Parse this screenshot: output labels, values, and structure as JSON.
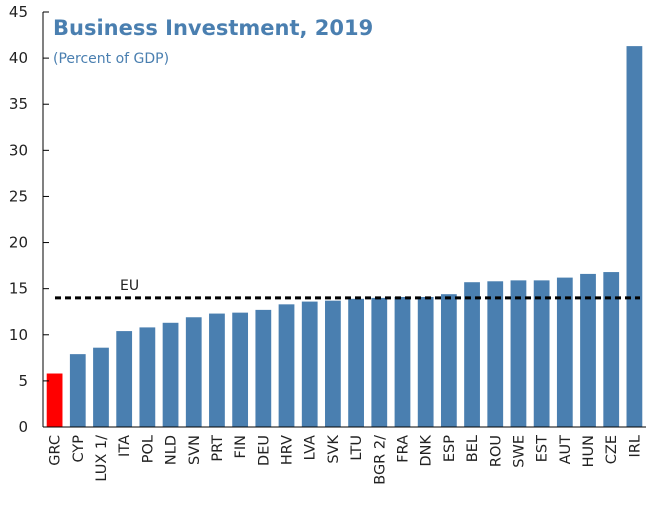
{
  "chart_data": {
    "type": "bar",
    "title": "Business Investment, 2019",
    "subtitle": "(Percent of GDP)",
    "xlabel": "",
    "ylabel": "",
    "ylim": [
      0,
      45
    ],
    "yticks": [
      0,
      5,
      10,
      15,
      20,
      25,
      30,
      35,
      40,
      45
    ],
    "categories": [
      "GRC",
      "CYP",
      "LUX 1/",
      "ITA",
      "POL",
      "NLD",
      "SVN",
      "PRT",
      "FIN",
      "DEU",
      "HRV",
      "LVA",
      "SVK",
      "LTU",
      "BGR 2/",
      "FRA",
      "DNK",
      "ESP",
      "BEL",
      "ROU",
      "SWE",
      "EST",
      "AUT",
      "HUN",
      "CZE",
      "IRL"
    ],
    "values": [
      5.8,
      7.9,
      8.6,
      10.4,
      10.8,
      11.3,
      11.9,
      12.3,
      12.4,
      12.7,
      13.3,
      13.6,
      13.7,
      13.9,
      14.0,
      14.1,
      14.1,
      14.4,
      15.7,
      15.8,
      15.9,
      15.9,
      16.2,
      16.6,
      16.8,
      41.3
    ],
    "highlight": "GRC",
    "reference_line": {
      "label": "EU",
      "value": 14.0
    },
    "colors": {
      "bar": "#4a7fb0",
      "highlight": "#ff0000",
      "reference": "#000000",
      "title": "#4a7fb0"
    },
    "grid": false
  }
}
